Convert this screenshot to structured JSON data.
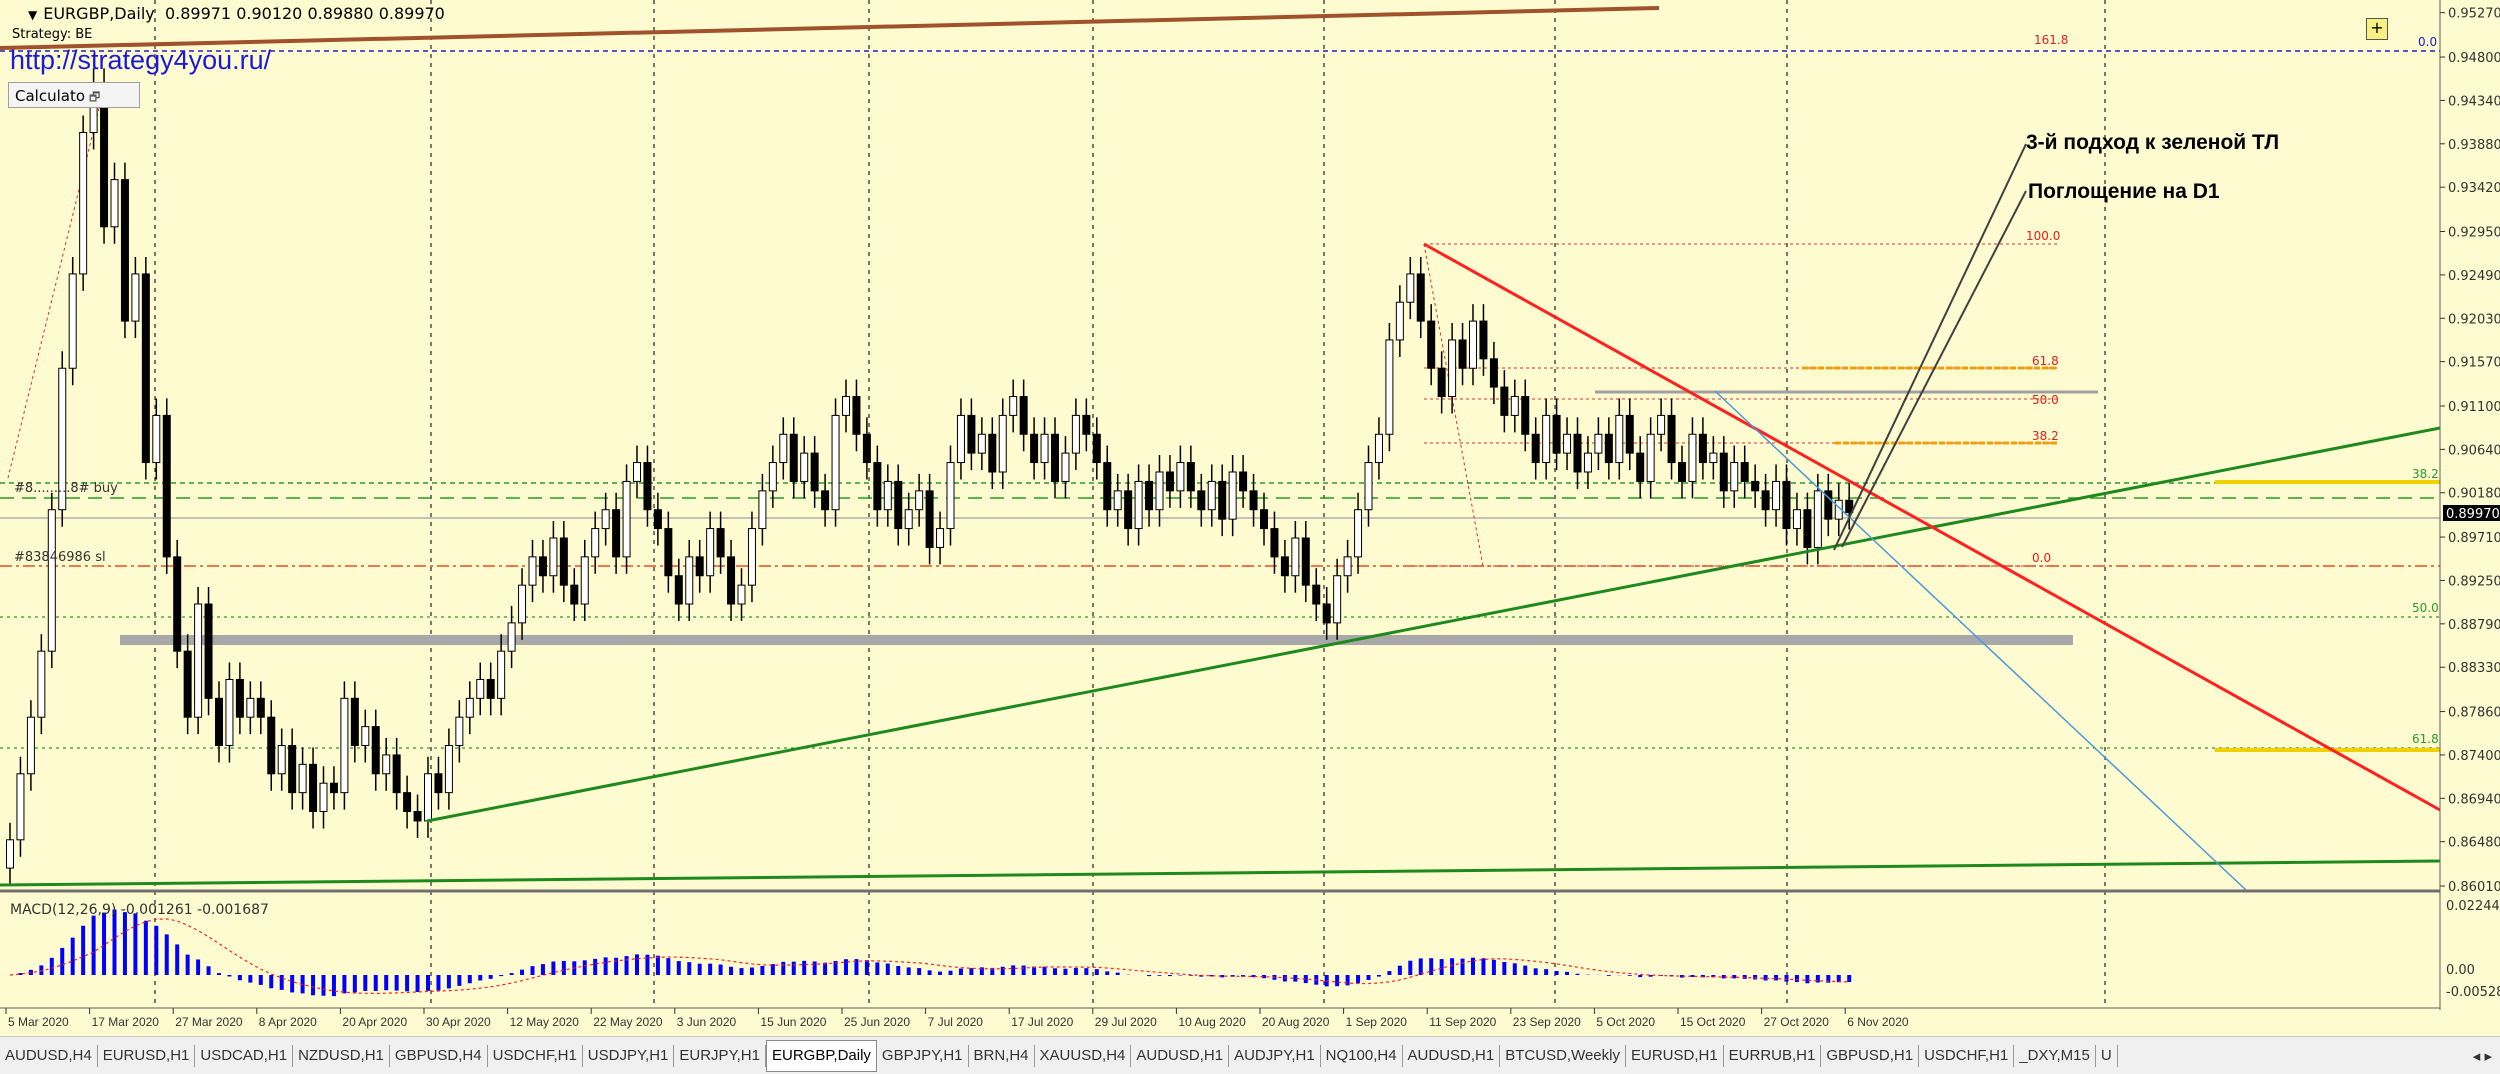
{
  "header": {
    "symbol": "EURGBP,Daily",
    "ohlc": "0.89971 0.90120 0.89880 0.89970",
    "strategy": "Strategy: BE",
    "watermark": "http://strategy4you.ru/",
    "calculator_label": "Calculato",
    "plus_label": "+"
  },
  "orders": {
    "buy_label": "#8.........8# buy",
    "sl_label": "#83846986 sl"
  },
  "macd_label": "MACD(12,26,9) -0.001261 -0.001687",
  "annotations": [
    "3-й подход к  зеленой ТЛ",
    "Поглощение на D1"
  ],
  "fib_labels": {
    "f1618": "161.8",
    "top00": "0.0",
    "f100": "100.0",
    "f618": "61.8",
    "f50": "50.0",
    "f382": "38.2",
    "f00": "0.0",
    "r382": "38.2",
    "r50": "50.0",
    "r618": "61.8"
  },
  "colors": {
    "background": "#fffbd0",
    "bull": "#ffffff",
    "bear": "#000000",
    "macd": "#0000ff",
    "signal": "#ff0000",
    "support_tl": "#008000",
    "resistance_tl": "#ff0000"
  },
  "chart_data": {
    "type": "candlestick",
    "symbol": "EURGBP",
    "timeframe": "Daily",
    "price_axis": [
      "0.95270",
      "0.94800",
      "0.94340",
      "0.93880",
      "0.93420",
      "0.92950",
      "0.92490",
      "0.92030",
      "0.91570",
      "0.91100",
      "0.90640",
      "0.90180",
      "0.89710",
      "0.89250",
      "0.88790",
      "0.88330",
      "0.87860",
      "0.87400",
      "0.86940",
      "0.86480",
      "0.86010"
    ],
    "current_price": "0.89970",
    "ylim": [
      0.8601,
      0.9527
    ],
    "date_labels": [
      "5 Mar 2020",
      "17 Mar 2020",
      "27 Mar 2020",
      "8 Apr 2020",
      "20 Apr 2020",
      "30 Apr 2020",
      "12 May 2020",
      "22 May 2020",
      "3 Jun 2020",
      "15 Jun 2020",
      "25 Jun 2020",
      "7 Jul 2020",
      "17 Jul 2020",
      "29 Jul 2020",
      "10 Aug 2020",
      "20 Aug 2020",
      "1 Sep 2020",
      "11 Sep 2020",
      "23 Sep 2020",
      "5 Oct 2020",
      "15 Oct 2020",
      "27 Oct 2020",
      "6 Nov 2020"
    ],
    "first_open": 0.862,
    "closes": [
      0.865,
      0.872,
      0.878,
      0.885,
      0.9,
      0.915,
      0.925,
      0.94,
      0.945,
      0.93,
      0.935,
      0.92,
      0.925,
      0.905,
      0.91,
      0.895,
      0.885,
      0.878,
      0.89,
      0.88,
      0.875,
      0.882,
      0.878,
      0.88,
      0.878,
      0.872,
      0.875,
      0.87,
      0.873,
      0.868,
      0.871,
      0.87,
      0.88,
      0.875,
      0.877,
      0.872,
      0.874,
      0.87,
      0.868,
      0.867,
      0.872,
      0.87,
      0.875,
      0.878,
      0.88,
      0.882,
      0.88,
      0.885,
      0.888,
      0.892,
      0.895,
      0.893,
      0.897,
      0.892,
      0.89,
      0.895,
      0.898,
      0.9,
      0.895,
      0.903,
      0.905,
      0.9,
      0.898,
      0.893,
      0.89,
      0.895,
      0.893,
      0.898,
      0.895,
      0.89,
      0.892,
      0.898,
      0.902,
      0.905,
      0.908,
      0.903,
      0.906,
      0.902,
      0.9,
      0.91,
      0.912,
      0.908,
      0.905,
      0.9,
      0.903,
      0.898,
      0.9,
      0.902,
      0.896,
      0.898,
      0.905,
      0.91,
      0.906,
      0.908,
      0.904,
      0.91,
      0.912,
      0.908,
      0.905,
      0.908,
      0.903,
      0.906,
      0.91,
      0.908,
      0.905,
      0.9,
      0.902,
      0.898,
      0.903,
      0.9,
      0.904,
      0.902,
      0.905,
      0.902,
      0.9,
      0.903,
      0.899,
      0.904,
      0.902,
      0.9,
      0.898,
      0.895,
      0.893,
      0.897,
      0.892,
      0.89,
      0.888,
      0.893,
      0.895,
      0.9,
      0.905,
      0.908,
      0.918,
      0.922,
      0.925,
      0.92,
      0.915,
      0.912,
      0.918,
      0.915,
      0.92,
      0.916,
      0.913,
      0.91,
      0.912,
      0.908,
      0.905,
      0.91,
      0.906,
      0.908,
      0.904,
      0.906,
      0.908,
      0.905,
      0.91,
      0.906,
      0.903,
      0.908,
      0.91,
      0.905,
      0.903,
      0.908,
      0.905,
      0.906,
      0.902,
      0.905,
      0.903,
      0.902,
      0.9,
      0.903,
      0.898,
      0.9,
      0.896,
      0.902,
      0.899,
      0.901,
      0.8997
    ],
    "macd": {
      "params": "12,26,9",
      "value": -0.001261,
      "signal": -0.001687,
      "axis": [
        "0.022448",
        "0.00",
        "-0.00528"
      ],
      "ylim": [
        -0.00528,
        0.022448
      ]
    }
  },
  "tabs": [
    "AUDUSD,H4",
    "EURUSD,H1",
    "USDCAD,H1",
    "NZDUSD,H1",
    "GBPUSD,H4",
    "USDCHF,H1",
    "USDJPY,H1",
    "EURJPY,H1",
    "EURGBP,Daily",
    "GBPJPY,H1",
    "BRN,H4",
    "XAUUSD,H4",
    "AUDUSD,H1",
    "AUDJPY,H1",
    "NQ100,H4",
    "AUDUSD,H1",
    "BTCUSD,Weekly",
    "EURUSD,H1",
    "EURRUB,H1",
    "GBPUSD,H1",
    "USDCHF,H1",
    "_DXY,M15",
    "U"
  ],
  "active_tab": "EURGBP,Daily"
}
